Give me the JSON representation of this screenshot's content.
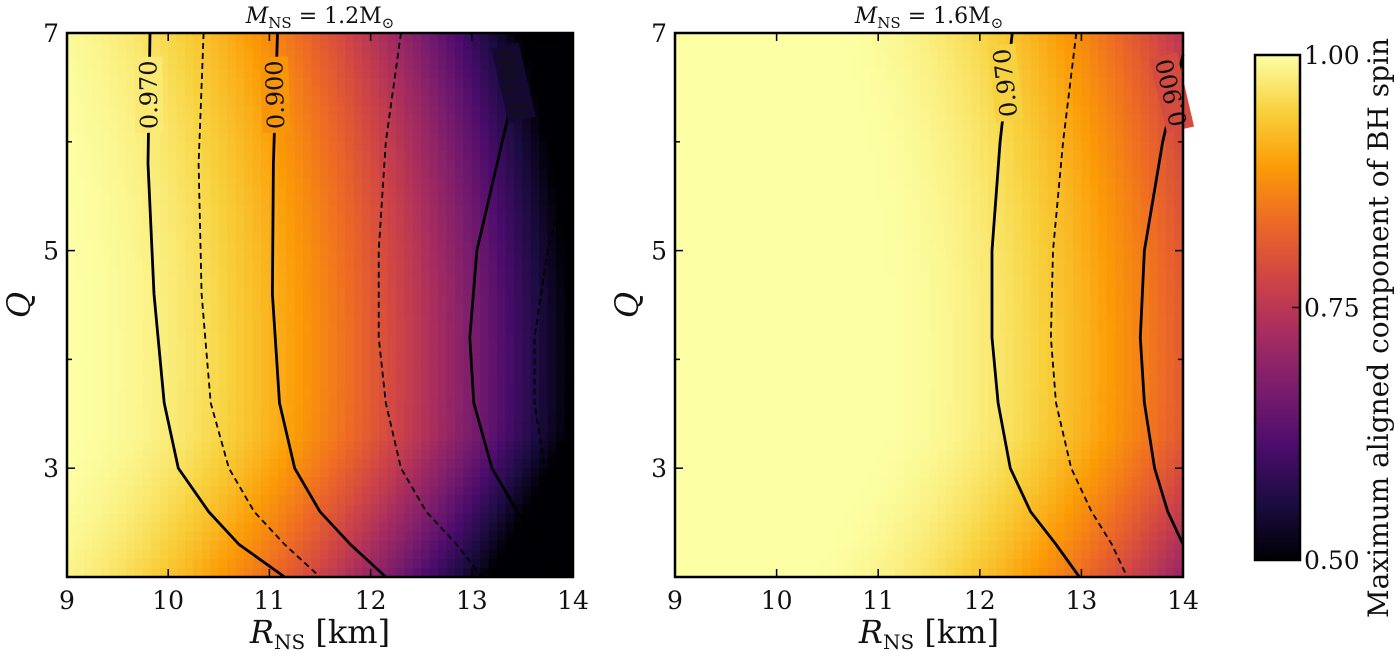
{
  "chart_data": [
    {
      "type": "heatmap",
      "title": "M_NS = 1.2M_⊙",
      "title_main": "M",
      "title_sub": "NS",
      "title_rest": " = 1.2M",
      "title_sym": "⊙",
      "xlabel_main": "R",
      "xlabel_sub": "NS",
      "xlabel_rest": " [km]",
      "ylabel": "Q",
      "xlim": [
        9,
        14
      ],
      "ylim": [
        2,
        7
      ],
      "xticks": [
        "9",
        "10",
        "11",
        "12",
        "13",
        "14"
      ],
      "yticks": [
        "3",
        "5",
        "7"
      ],
      "m_ns": 1.2,
      "contours_solid": [
        {
          "level": 0.97,
          "label": "0.970",
          "points": [
            [
              9.82,
              7.0
            ],
            [
              9.8,
              5.8
            ],
            [
              9.86,
              4.6
            ],
            [
              9.96,
              3.6
            ],
            [
              10.1,
              3.0
            ],
            [
              10.4,
              2.6
            ],
            [
              10.7,
              2.3
            ],
            [
              11.15,
              2.0
            ]
          ]
        },
        {
          "level": 0.9,
          "label": "0.900",
          "points": [
            [
              11.08,
              7.0
            ],
            [
              11.04,
              5.8
            ],
            [
              11.03,
              4.6
            ],
            [
              11.1,
              3.6
            ],
            [
              11.25,
              3.0
            ],
            [
              11.5,
              2.6
            ],
            [
              11.8,
              2.3
            ],
            [
              12.15,
              2.0
            ]
          ]
        },
        {
          "level": 0.7,
          "label": "0.700",
          "points": [
            [
              13.55,
              7.0
            ],
            [
              13.3,
              6.0
            ],
            [
              13.05,
              5.0
            ],
            [
              12.98,
              4.2
            ],
            [
              13.02,
              3.6
            ],
            [
              13.2,
              3.0
            ],
            [
              13.45,
              2.6
            ],
            [
              13.7,
              2.3
            ],
            [
              13.85,
              2.0
            ]
          ]
        }
      ],
      "contours_dashed": [
        {
          "level": 0.94,
          "points": [
            [
              10.35,
              7.0
            ],
            [
              10.3,
              5.8
            ],
            [
              10.33,
              4.6
            ],
            [
              10.42,
              3.6
            ],
            [
              10.6,
              3.0
            ],
            [
              10.85,
              2.6
            ],
            [
              11.15,
              2.3
            ],
            [
              11.5,
              2.0
            ]
          ]
        },
        {
          "level": 0.8,
          "points": [
            [
              12.3,
              7.0
            ],
            [
              12.15,
              6.0
            ],
            [
              12.08,
              5.0
            ],
            [
              12.08,
              4.2
            ],
            [
              12.15,
              3.6
            ],
            [
              12.3,
              3.0
            ],
            [
              12.55,
              2.6
            ],
            [
              12.85,
              2.3
            ],
            [
              13.1,
              2.0
            ]
          ]
        },
        {
          "level": 0.6,
          "points": [
            [
              14.0,
              5.9
            ],
            [
              13.75,
              5.0
            ],
            [
              13.62,
              4.2
            ],
            [
              13.62,
              3.6
            ],
            [
              13.72,
              3.0
            ],
            [
              13.85,
              2.6
            ],
            [
              14.0,
              2.55
            ]
          ]
        }
      ]
    },
    {
      "type": "heatmap",
      "title": "M_NS = 1.6M_⊙",
      "title_main": "M",
      "title_sub": "NS",
      "title_rest": " = 1.6M",
      "title_sym": "⊙",
      "xlabel_main": "R",
      "xlabel_sub": "NS",
      "xlabel_rest": " [km]",
      "ylabel": "Q",
      "xlim": [
        9,
        14
      ],
      "ylim": [
        2,
        7
      ],
      "xticks": [
        "9",
        "10",
        "11",
        "12",
        "13",
        "14"
      ],
      "yticks": [
        "3",
        "5",
        "7"
      ],
      "m_ns": 1.6,
      "contours_solid": [
        {
          "level": 0.97,
          "label": "0.970",
          "points": [
            [
              12.32,
              7.0
            ],
            [
              12.2,
              6.0
            ],
            [
              12.12,
              5.0
            ],
            [
              12.12,
              4.2
            ],
            [
              12.18,
              3.6
            ],
            [
              12.3,
              3.0
            ],
            [
              12.5,
              2.6
            ],
            [
              12.75,
              2.3
            ],
            [
              12.98,
              2.0
            ]
          ]
        },
        {
          "level": 0.9,
          "label": "0.900",
          "points": [
            [
              14.0,
              6.8
            ],
            [
              13.8,
              6.0
            ],
            [
              13.62,
              5.0
            ],
            [
              13.58,
              4.2
            ],
            [
              13.62,
              3.6
            ],
            [
              13.72,
              3.0
            ],
            [
              13.85,
              2.6
            ],
            [
              14.0,
              2.3
            ]
          ]
        }
      ],
      "contours_dashed": [
        {
          "level": 0.94,
          "points": [
            [
              12.95,
              7.0
            ],
            [
              12.82,
              6.0
            ],
            [
              12.72,
              5.0
            ],
            [
              12.7,
              4.2
            ],
            [
              12.75,
              3.6
            ],
            [
              12.9,
              3.0
            ],
            [
              13.1,
              2.6
            ],
            [
              13.3,
              2.3
            ],
            [
              13.45,
              2.0
            ]
          ]
        }
      ]
    }
  ],
  "colorbar": {
    "label": "Maximum aligned component of BH spin",
    "ticks": [
      "0.50",
      "0.75",
      "1.00"
    ],
    "range": [
      0.5,
      1.0
    ],
    "colormap": "inferno",
    "stops": [
      "#000004",
      "#1b0c41",
      "#4a0c6b",
      "#781c6d",
      "#a52c60",
      "#cf4446",
      "#ed6925",
      "#fb9b06",
      "#f7d13d",
      "#fcffa4"
    ]
  }
}
